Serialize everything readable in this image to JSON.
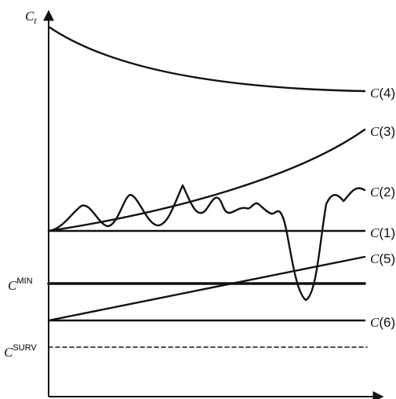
{
  "axis": {
    "y_label": "C",
    "y_label_sub": "t"
  },
  "curves": {
    "c4": {
      "label_prefix": "C",
      "label_suffix": "(4)"
    },
    "c3": {
      "label_prefix": "C",
      "label_suffix": "(3)"
    },
    "c2": {
      "label_prefix": "C",
      "label_suffix": "(2)"
    },
    "c1": {
      "label_prefix": "C",
      "label_suffix": "(1)"
    },
    "c5": {
      "label_prefix": "C",
      "label_suffix": "(5)"
    },
    "c6": {
      "label_prefix": "C",
      "label_suffix": "(6)"
    }
  },
  "thresholds": {
    "min": {
      "base": "C",
      "sup": "MIN"
    },
    "surv": {
      "base": "C",
      "sup": "SURV"
    }
  }
}
